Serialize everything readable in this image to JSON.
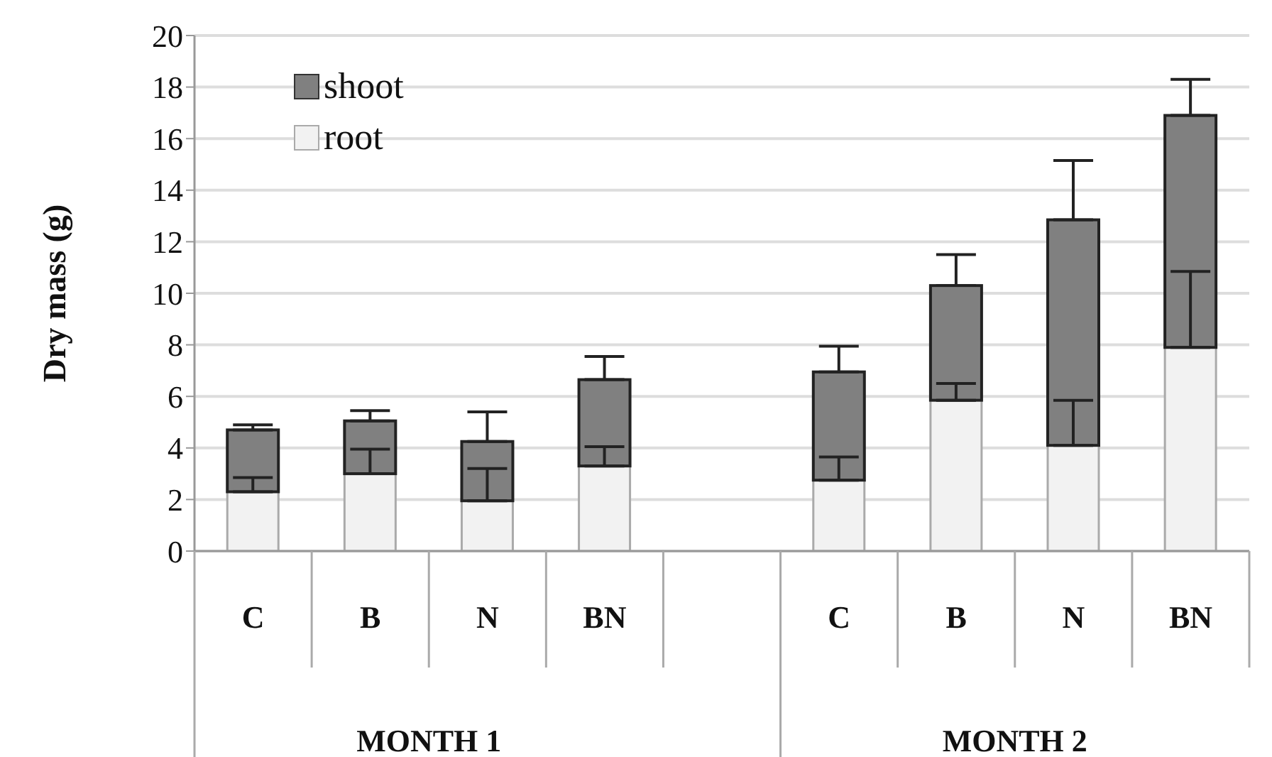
{
  "chart_data": {
    "type": "bar",
    "stacked": true,
    "ylabel": "Dry mass (g)",
    "categories": [
      "C",
      "B",
      "N",
      "BN",
      null,
      "C",
      "B",
      "N",
      "BN"
    ],
    "annotations": [
      "MONTH 1",
      "MONTH 2"
    ],
    "series": [
      {
        "name": "root",
        "color": "#f2f2f2",
        "values": [
          2.3,
          3.0,
          1.95,
          3.3,
          null,
          2.75,
          5.85,
          4.1,
          7.9
        ],
        "errors": [
          [
            2.3,
            2.85
          ],
          [
            3.0,
            3.95
          ],
          [
            1.95,
            3.2
          ],
          [
            3.3,
            4.05
          ],
          null,
          [
            2.75,
            3.65
          ],
          [
            5.85,
            6.5
          ],
          [
            4.1,
            5.85
          ],
          [
            7.9,
            10.85
          ]
        ]
      },
      {
        "name": "shoot",
        "color": "#808080",
        "values": [
          2.4,
          2.05,
          2.3,
          3.35,
          null,
          4.2,
          4.45,
          8.75,
          9.0
        ],
        "errors": [
          [
            4.7,
            4.9
          ],
          [
            5.05,
            5.45
          ],
          [
            4.25,
            5.4
          ],
          [
            6.65,
            7.55
          ],
          null,
          [
            6.95,
            7.95
          ],
          [
            10.3,
            11.5
          ],
          [
            12.85,
            15.15
          ],
          [
            16.9,
            18.3
          ]
        ]
      }
    ],
    "ylim": [
      0,
      20
    ],
    "yticks": [
      0,
      2,
      4,
      6,
      8,
      10,
      12,
      14,
      16,
      18,
      20
    ],
    "grid": "y",
    "legend": "top left"
  }
}
